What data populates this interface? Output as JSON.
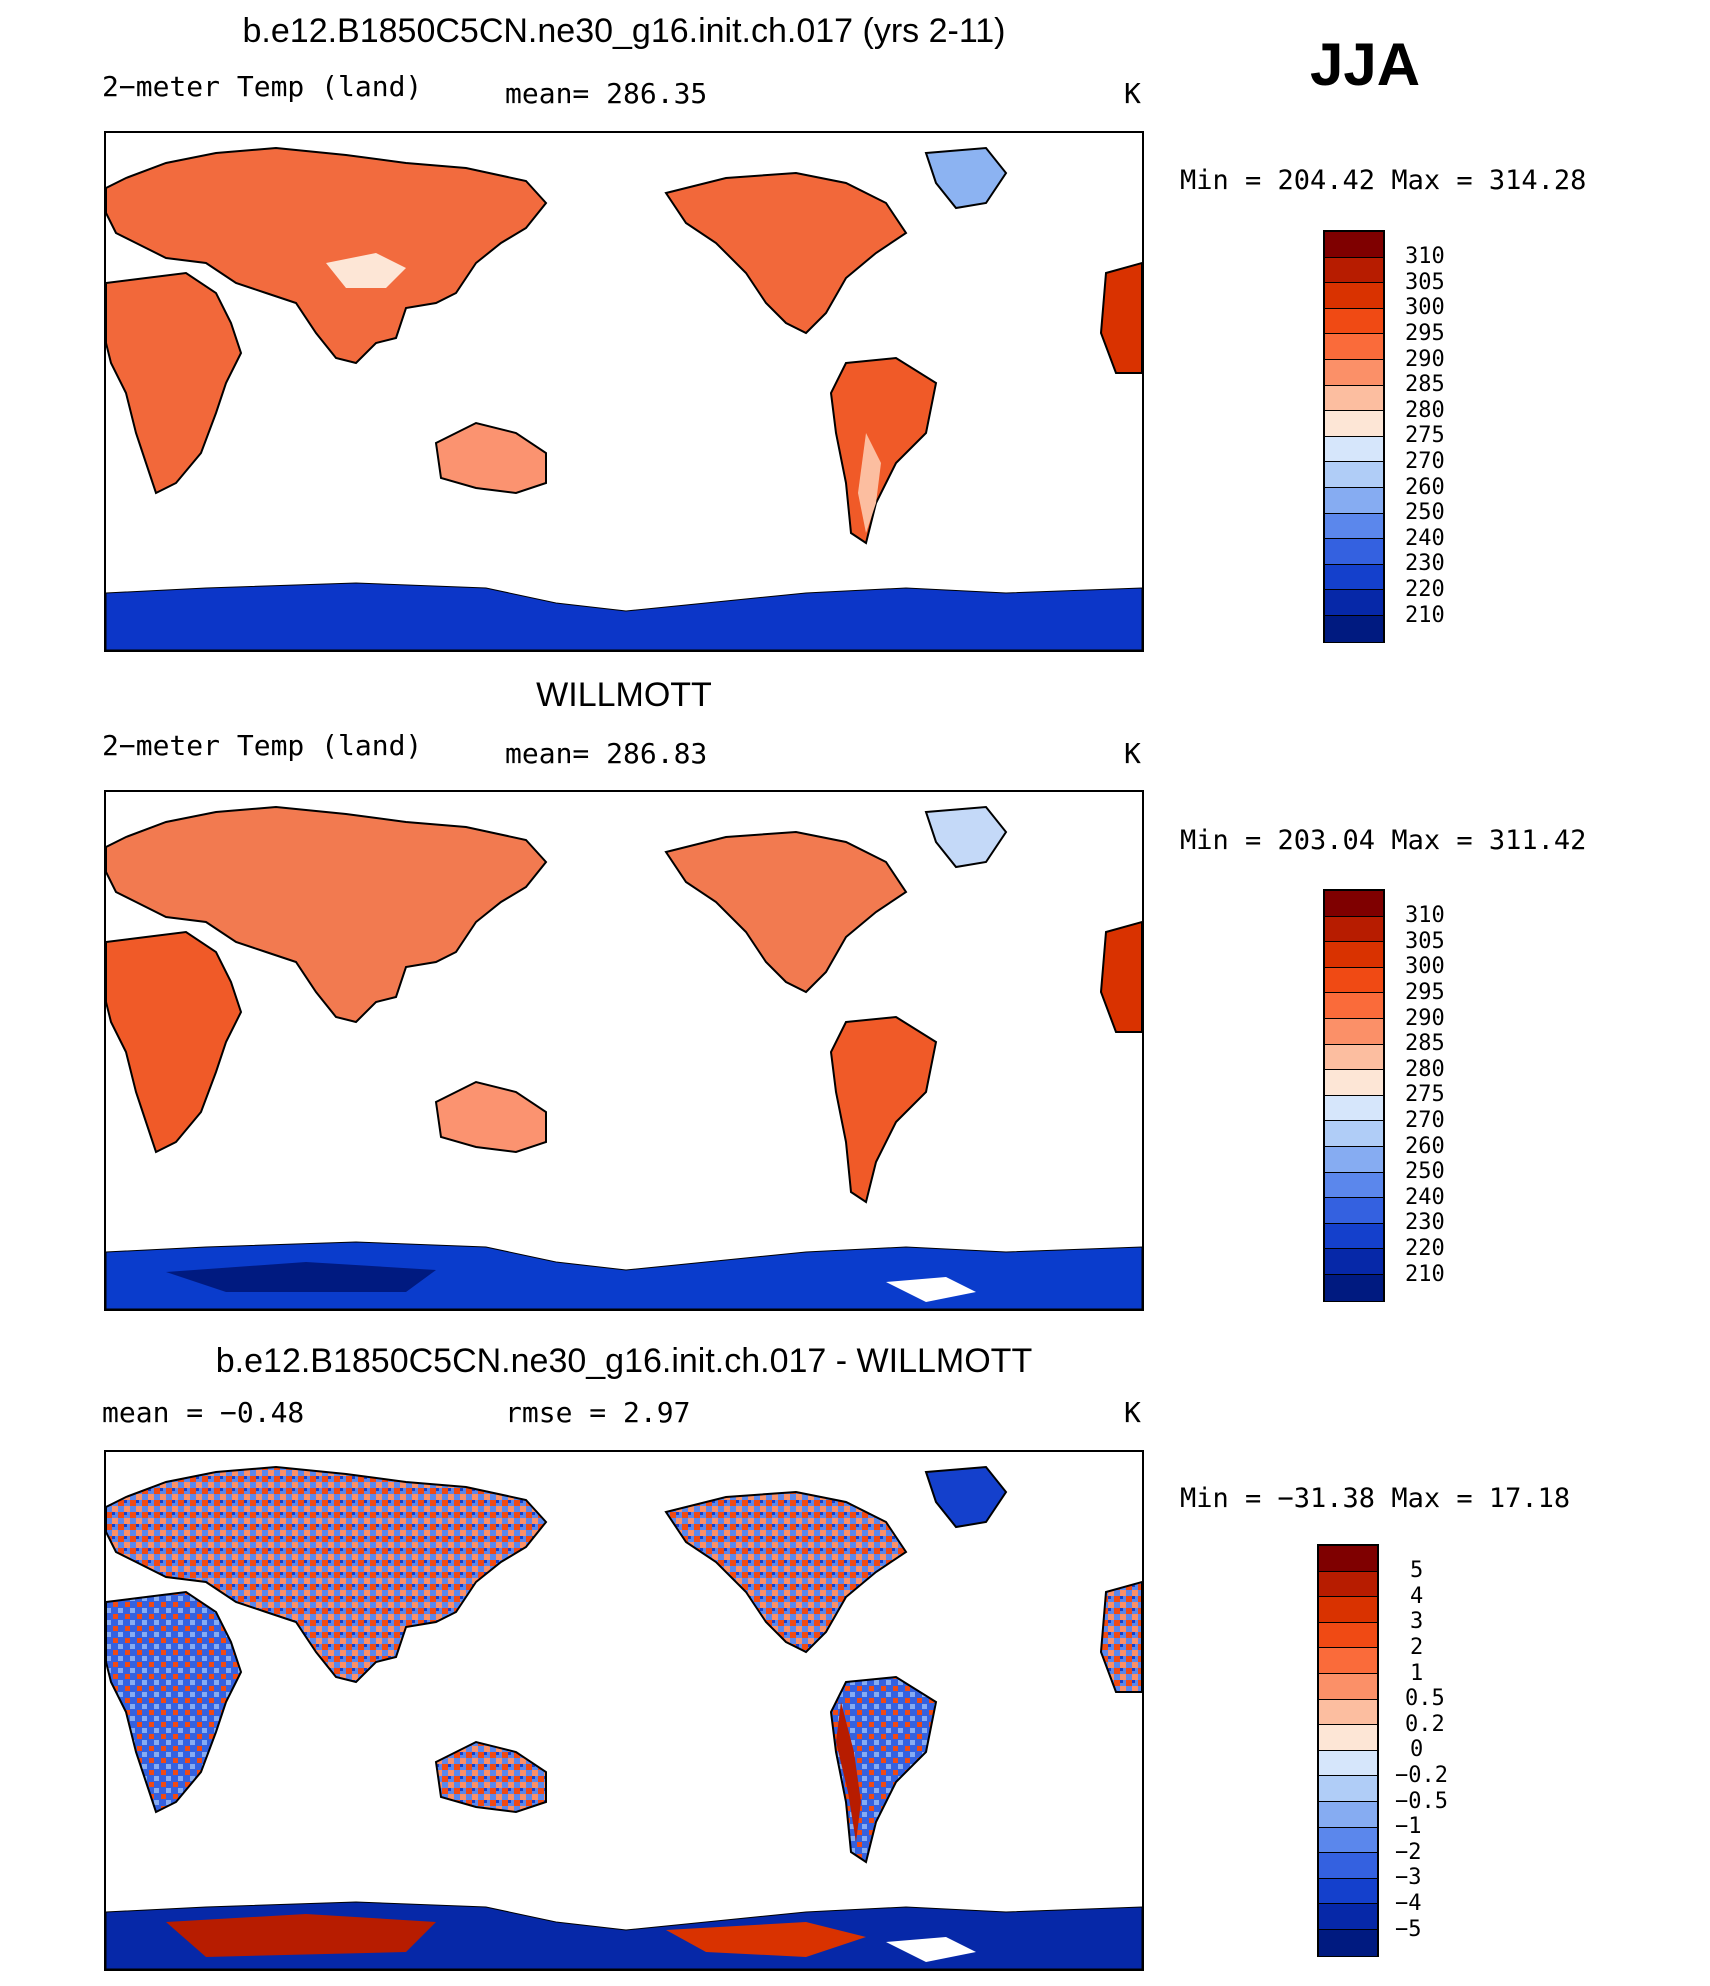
{
  "season": "JJA",
  "panels": [
    {
      "title": "b.e12.B1850C5CN.ne30_g16.init.ch.017 (yrs 2-11)",
      "left_label": "2−meter Temp (land)",
      "mid_label": "mean=  286.35",
      "units": "K",
      "minmax": "Min  =  204.42  Max  =  314.28",
      "colorbar_labels": [
        "310",
        "305",
        "300",
        "295",
        "290",
        "285",
        "280",
        "275",
        "270",
        "260",
        "250",
        "240",
        "230",
        "220",
        "210"
      ],
      "field": "model"
    },
    {
      "title": "WILLMOTT",
      "left_label": "2−meter Temp (land)",
      "mid_label": "mean=  286.83",
      "units": "K",
      "minmax": "Min  =  203.04  Max  =  311.42",
      "colorbar_labels": [
        "310",
        "305",
        "300",
        "295",
        "290",
        "285",
        "280",
        "275",
        "270",
        "260",
        "250",
        "240",
        "230",
        "220",
        "210"
      ],
      "field": "obs"
    },
    {
      "title": "b.e12.B1850C5CN.ne30_g16.init.ch.017 - WILLMOTT",
      "left_label": "mean =    −0.48",
      "mid_label": "rmse =     2.97",
      "units": "K",
      "minmax": "Min  =  −31.38  Max  =    17.18",
      "colorbar_labels": [
        "5",
        "4",
        "3",
        "2",
        "1",
        "0.5",
        "0.2",
        "0",
        "−0.2",
        "−0.5",
        "−1",
        "−2",
        "−3",
        "−4",
        "−5"
      ],
      "field": "diff"
    }
  ],
  "colorbar_colors": [
    "#7f0000",
    "#b71c00",
    "#d93200",
    "#f04a14",
    "#fa6b3a",
    "#fb9068",
    "#fcbea0",
    "#fde6d6",
    "#d6e6fb",
    "#b0cdf7",
    "#86acf2",
    "#5b87ec",
    "#3461e0",
    "#1440cc",
    "#0628a8",
    "#001a80"
  ],
  "colors": {
    "ocean": "#ffffff",
    "coast": "#000000",
    "antarctica_model": "#0c36c8",
    "antarctica_obs": "#0a3ccc"
  }
}
